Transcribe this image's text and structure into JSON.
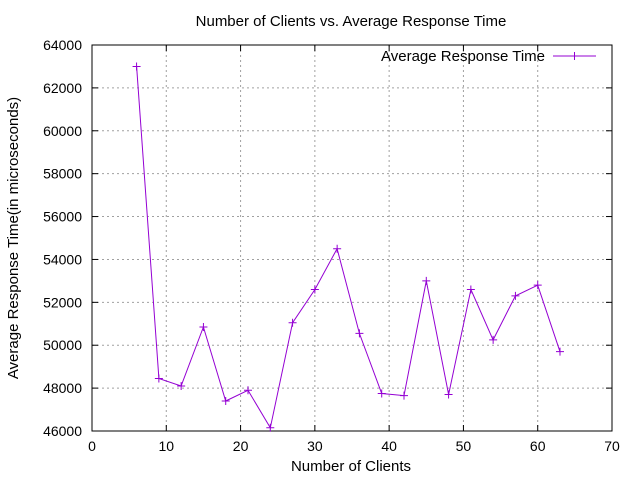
{
  "chart_data": {
    "type": "line",
    "title": "Number of Clients vs. Average Response Time",
    "xlabel": "Number of Clients",
    "ylabel": "Average Response Time(in microseconds)",
    "xlim": [
      0,
      70
    ],
    "ylim": [
      46000,
      64000
    ],
    "xticks": [
      "0",
      "10",
      "20",
      "30",
      "40",
      "50",
      "60",
      "70"
    ],
    "yticks": [
      "46000",
      "48000",
      "50000",
      "52000",
      "54000",
      "56000",
      "58000",
      "60000",
      "62000",
      "64000"
    ],
    "grid": true,
    "legend_position": "top-right",
    "series": [
      {
        "name": "Average Response Time",
        "color": "#9400d3",
        "marker": "plus",
        "x": [
          6,
          9,
          12,
          15,
          18,
          21,
          24,
          27,
          30,
          33,
          36,
          39,
          42,
          45,
          48,
          51,
          54,
          57,
          60,
          63
        ],
        "y": [
          63000,
          48450,
          48100,
          50850,
          47400,
          47900,
          46150,
          51050,
          52600,
          54500,
          50550,
          47750,
          47650,
          53000,
          47700,
          52600,
          50250,
          52300,
          52800,
          49700
        ]
      }
    ]
  }
}
